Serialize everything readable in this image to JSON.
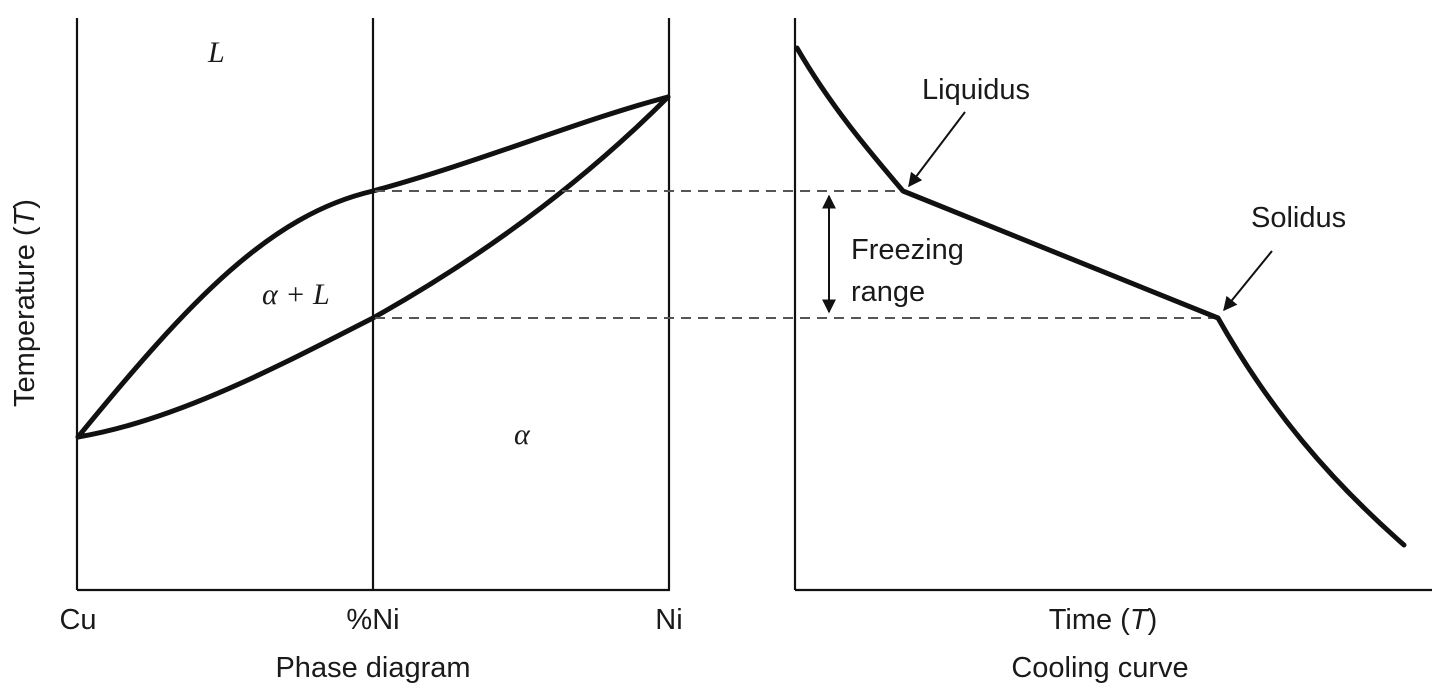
{
  "phase_diagram": {
    "y_axis_label": "Temperature (",
    "y_axis_label_var": "T",
    "y_axis_label_end": ")",
    "label_left": "Cu",
    "label_mid": "%Ni",
    "label_right": "Ni",
    "caption": "Phase diagram",
    "region_liquid": "L",
    "region_two_phase": "α + L",
    "region_solid": "α"
  },
  "cooling_curve": {
    "x_axis_label": "Time (",
    "x_axis_label_var": "T",
    "x_axis_label_end": ")",
    "caption": "Cooling curve",
    "liquidus": "Liquidus",
    "solidus": "Solidus",
    "freezing_line1": "Freezing",
    "freezing_line2": "range"
  },
  "colors": {
    "ink": "#111111",
    "dashes": "#555555"
  }
}
